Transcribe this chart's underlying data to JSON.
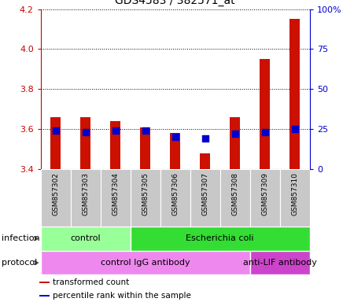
{
  "title": "GDS4583 / 382571_at",
  "samples": [
    "GSM857302",
    "GSM857303",
    "GSM857304",
    "GSM857305",
    "GSM857306",
    "GSM857307",
    "GSM857308",
    "GSM857309",
    "GSM857310"
  ],
  "transformed_counts": [
    3.66,
    3.66,
    3.64,
    3.61,
    3.58,
    3.48,
    3.66,
    3.95,
    4.15
  ],
  "percentile_ranks": [
    24,
    23,
    24,
    24,
    20,
    19,
    22,
    23,
    25
  ],
  "ylim_left": [
    3.4,
    4.2
  ],
  "ylim_right": [
    0,
    100
  ],
  "yticks_left": [
    3.4,
    3.6,
    3.8,
    4.0,
    4.2
  ],
  "yticks_right": [
    0,
    25,
    50,
    75,
    100
  ],
  "bar_color": "#cc1100",
  "dot_color": "#0000cc",
  "infection_labels": [
    {
      "label": "control",
      "start": 0,
      "end": 3,
      "color": "#99ff99"
    },
    {
      "label": "Escherichia coli",
      "start": 3,
      "end": 9,
      "color": "#33dd33"
    }
  ],
  "protocol_labels": [
    {
      "label": "control IgG antibody",
      "start": 0,
      "end": 7,
      "color": "#ee88ee"
    },
    {
      "label": "anti-LIF antibody",
      "start": 7,
      "end": 9,
      "color": "#cc44cc"
    }
  ],
  "infection_row_label": "infection",
  "protocol_row_label": "protocol",
  "legend_items": [
    {
      "color": "#cc1100",
      "label": "transformed count"
    },
    {
      "color": "#0000cc",
      "label": "percentile rank within the sample"
    }
  ],
  "tick_color_left": "#cc0000",
  "tick_color_right": "#0000cc",
  "bar_width": 0.35,
  "dot_size": 35,
  "sample_bg_color": "#c8c8c8",
  "ytick_right_labels": [
    "0",
    "25",
    "50",
    "75",
    "100%"
  ]
}
